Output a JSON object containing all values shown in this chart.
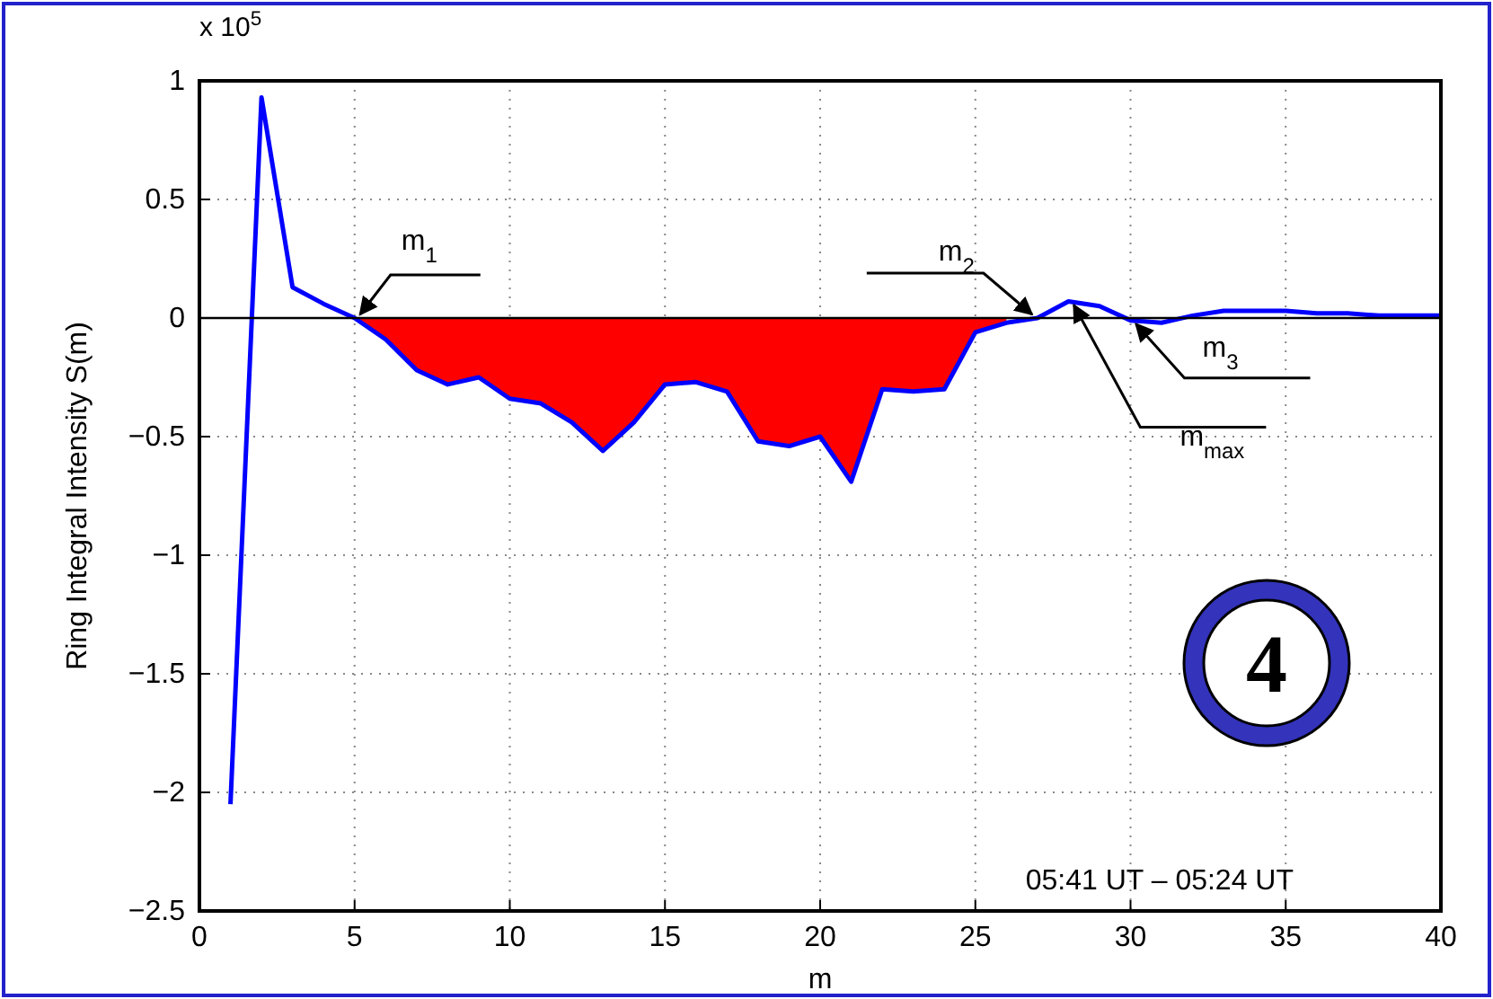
{
  "chart_data": {
    "type": "line",
    "xlabel": "m",
    "ylabel": "Ring Integral Intensity S(m)",
    "xlim": [
      0,
      40
    ],
    "xticks": [
      0,
      5,
      10,
      15,
      20,
      25,
      30,
      35,
      40
    ],
    "ylim": [
      -2.5,
      1
    ],
    "yticks": [
      {
        "value": -2.5,
        "label": "−2.5"
      },
      {
        "value": -2,
        "label": "−2"
      },
      {
        "value": -1.5,
        "label": "−1.5"
      },
      {
        "value": -1,
        "label": "−1"
      },
      {
        "value": -0.5,
        "label": "−0.5"
      },
      0,
      0.5,
      1
    ],
    "grid": true,
    "marker": "none",
    "line_style": "solid",
    "ref_lines": [
      {
        "axis": "y",
        "value": 0,
        "color": "#000000"
      }
    ],
    "series": [
      {
        "type": "area",
        "color": "#ff0000",
        "x": [
          5,
          6,
          7,
          8,
          9,
          10,
          11,
          12,
          13,
          14,
          15,
          16,
          17,
          18,
          19,
          20,
          21,
          22,
          23,
          24,
          25,
          26
        ],
        "values": [
          0,
          -0.09,
          -0.22,
          -0.28,
          -0.25,
          -0.34,
          -0.36,
          -0.44,
          -0.56,
          -0.44,
          -0.28,
          -0.27,
          -0.31,
          -0.52,
          -0.54,
          -0.5,
          -0.69,
          -0.3,
          -0.31,
          -0.3,
          -0.06,
          -0.02
        ]
      },
      {
        "color": "#0000ff",
        "x": [
          1,
          2,
          3,
          4,
          5,
          6,
          7,
          8,
          9,
          10,
          11,
          12,
          13,
          14,
          15,
          16,
          17,
          18,
          19,
          20,
          21,
          22,
          23,
          24,
          25,
          26,
          27,
          28,
          29,
          30,
          31,
          32,
          33,
          34,
          35,
          36,
          37,
          38,
          39,
          40
        ],
        "values": [
          -2.05,
          0.93,
          0.13,
          0.06,
          0,
          -0.09,
          -0.22,
          -0.28,
          -0.25,
          -0.34,
          -0.36,
          -0.44,
          -0.56,
          -0.44,
          -0.28,
          -0.27,
          -0.31,
          -0.52,
          -0.54,
          -0.5,
          -0.69,
          -0.3,
          -0.31,
          -0.3,
          -0.06,
          -0.02,
          0,
          0.07,
          0.05,
          -0.01,
          -0.02,
          0.01,
          0.03,
          0.03,
          0.03,
          0.02,
          0.02,
          0.01,
          0.01,
          0.01
        ]
      }
    ],
    "annotations": [
      "x 10$^{5}$",
      {
        "text": "m$_{1}$",
        "x": 5,
        "y": 0
      },
      {
        "text": "m$_{2}$",
        "x": 27,
        "y": 0
      },
      {
        "text": "m$_{max}$",
        "x": 28,
        "y": 0.07
      },
      {
        "text": "m$_{3}$",
        "x": 30,
        "y": -0.01
      },
      "4",
      "05:41 UT – 05:24 UT"
    ]
  }
}
